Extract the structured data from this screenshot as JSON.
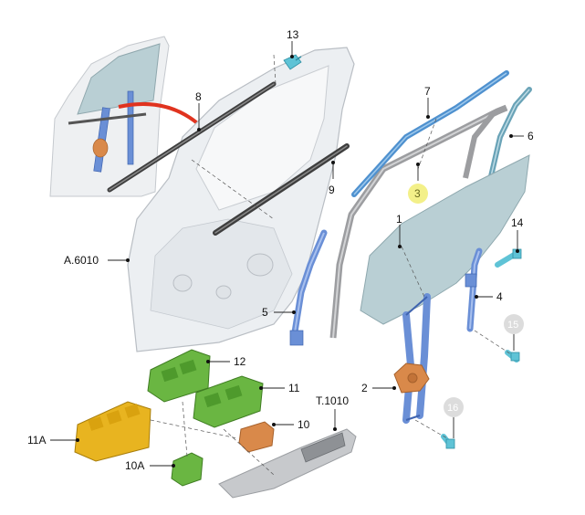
{
  "callouts": {
    "c13": "13",
    "c8": "8",
    "c7": "7",
    "c6": "6",
    "c3": "3",
    "c9": "9",
    "c1": "1",
    "c14": "14",
    "cA6010": "A.6010",
    "c4": "4",
    "c5": "5",
    "c15": "15",
    "c12": "12",
    "c11": "11",
    "c2": "2",
    "cT1010": "T.1010",
    "c10": "10",
    "c11A": "11A",
    "c16": "16",
    "c10A": "10A"
  },
  "colors": {
    "door_panel": "#e9ecef",
    "door_outline": "#b9bec4",
    "seal_dark": "#4a4a4a",
    "glass": "#b9cfd4",
    "run_channel": "#a9aaad",
    "blue_part": "#6a8fd6",
    "cyan_clip": "#5fc3d6",
    "orange_motor": "#d9894a",
    "green_switch": "#6ab642",
    "yellow_switch": "#e8b420",
    "highlight_badge": "#f3f089",
    "grey_badge": "#d9d9d9",
    "arrow_red": "#e0331f"
  }
}
